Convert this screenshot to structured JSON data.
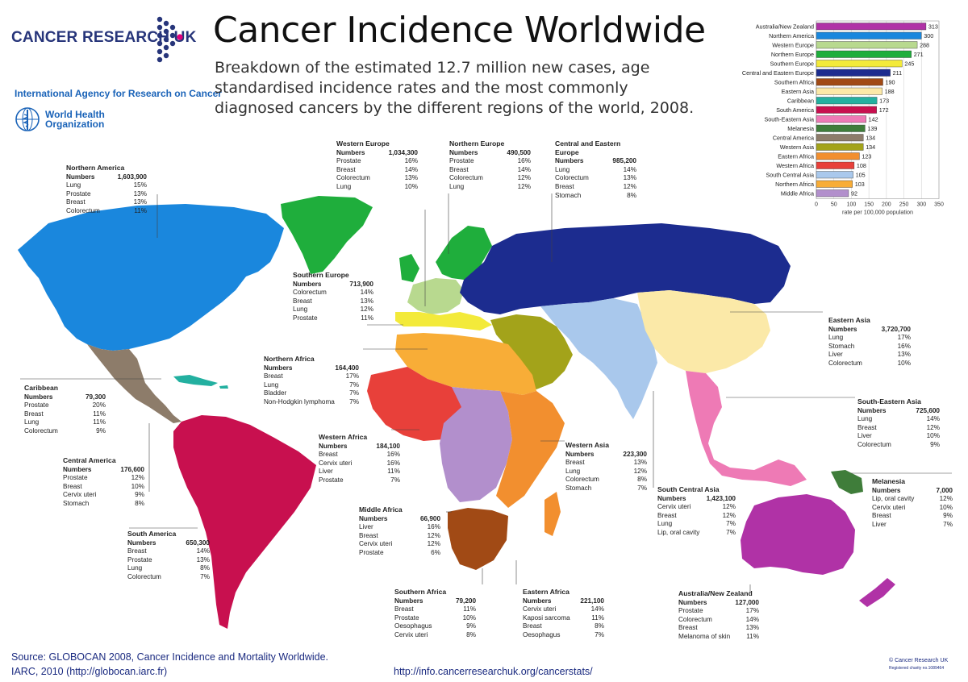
{
  "header": {
    "logo_text": "CANCER RESEARCH UK",
    "iarc_text": "International Agency for Research on Cancer",
    "who_line1": "World Health",
    "who_line2": "Organization",
    "title": "Cancer Incidence Worldwide",
    "subtitle": "Breakdown of the estimated 12.7 million new cases, age standardised incidence rates and the most commonly diagnosed cancers by the different regions of the world, 2008."
  },
  "labels": {
    "numbers": "Numbers"
  },
  "regions": [
    {
      "name": "Northern America",
      "numbers": "1,603,900",
      "cancers": [
        [
          "Lung",
          "15%"
        ],
        [
          "Prostate",
          "13%"
        ],
        [
          "Breast",
          "13%"
        ],
        [
          "Colorectum",
          "11%"
        ]
      ],
      "color": "#1a87dd"
    },
    {
      "name": "Western Europe",
      "numbers": "1,034,300",
      "cancers": [
        [
          "Prostate",
          "16%"
        ],
        [
          "Breast",
          "14%"
        ],
        [
          "Colorectum",
          "13%"
        ],
        [
          "Lung",
          "10%"
        ]
      ],
      "color": "#b8d98f"
    },
    {
      "name": "Northern Europe",
      "numbers": "490,500",
      "cancers": [
        [
          "Prostate",
          "16%"
        ],
        [
          "Breast",
          "14%"
        ],
        [
          "Colorectum",
          "12%"
        ],
        [
          "Lung",
          "12%"
        ]
      ],
      "color": "#1fae3c"
    },
    {
      "name": "Central and Eastern Europe",
      "numbers": "985,200",
      "cancers": [
        [
          "Lung",
          "14%"
        ],
        [
          "Colorectum",
          "13%"
        ],
        [
          "Breast",
          "12%"
        ],
        [
          "Stomach",
          "8%"
        ]
      ],
      "color": "#1c2c8f"
    },
    {
      "name": "Southern Europe",
      "numbers": "713,900",
      "cancers": [
        [
          "Colorectum",
          "14%"
        ],
        [
          "Breast",
          "13%"
        ],
        [
          "Lung",
          "12%"
        ],
        [
          "Prostate",
          "11%"
        ]
      ],
      "color": "#f3ea3a"
    },
    {
      "name": "Eastern Asia",
      "numbers": "3,720,700",
      "cancers": [
        [
          "Lung",
          "17%"
        ],
        [
          "Stomach",
          "16%"
        ],
        [
          "Liver",
          "13%"
        ],
        [
          "Colorectum",
          "10%"
        ]
      ],
      "color": "#fbe9a8"
    },
    {
      "name": "Caribbean",
      "numbers": "79,300",
      "cancers": [
        [
          "Prostate",
          "20%"
        ],
        [
          "Breast",
          "11%"
        ],
        [
          "Lung",
          "11%"
        ],
        [
          "Colorectum",
          "9%"
        ]
      ],
      "color": "#23b0a0"
    },
    {
      "name": "Northern Africa",
      "numbers": "164,400",
      "cancers": [
        [
          "Breast",
          "17%"
        ],
        [
          "Lung",
          "7%"
        ],
        [
          "Bladder",
          "7%"
        ],
        [
          "Non-Hodgkin lymphoma",
          "7%"
        ]
      ],
      "color": "#f8ad37"
    },
    {
      "name": "South-Eastern Asia",
      "numbers": "725,600",
      "cancers": [
        [
          "Lung",
          "14%"
        ],
        [
          "Breast",
          "12%"
        ],
        [
          "Liver",
          "10%"
        ],
        [
          "Colorectum",
          "9%"
        ]
      ],
      "color": "#ee7ab5"
    },
    {
      "name": "Western Africa",
      "numbers": "184,100",
      "cancers": [
        [
          "Breast",
          "16%"
        ],
        [
          "Cervix uteri",
          "16%"
        ],
        [
          "Liver",
          "11%"
        ],
        [
          "Prostate",
          "7%"
        ]
      ],
      "color": "#e8403a"
    },
    {
      "name": "Central America",
      "numbers": "176,600",
      "cancers": [
        [
          "Prostate",
          "12%"
        ],
        [
          "Breast",
          "10%"
        ],
        [
          "Cervix uteri",
          "9%"
        ],
        [
          "Stomach",
          "8%"
        ]
      ],
      "color": "#8d7c6a"
    },
    {
      "name": "Western Asia",
      "numbers": "223,300",
      "cancers": [
        [
          "Breast",
          "13%"
        ],
        [
          "Lung",
          "12%"
        ],
        [
          "Colorectum",
          "8%"
        ],
        [
          "Stomach",
          "7%"
        ]
      ],
      "color": "#a3a31a"
    },
    {
      "name": "Melanesia",
      "numbers": "7,000",
      "cancers": [
        [
          "Lip, oral cavity",
          "12%"
        ],
        [
          "Cervix uteri",
          "10%"
        ],
        [
          "Breast",
          "9%"
        ],
        [
          "Liver",
          "7%"
        ]
      ],
      "color": "#3f7d3a"
    },
    {
      "name": "South Central Asia",
      "numbers": "1,423,100",
      "cancers": [
        [
          "Cervix uteri",
          "12%"
        ],
        [
          "Breast",
          "12%"
        ],
        [
          "Lung",
          "7%"
        ],
        [
          "Lip, oral cavity",
          "7%"
        ]
      ],
      "color": "#a9c8ec"
    },
    {
      "name": "Middle Africa",
      "numbers": "66,900",
      "cancers": [
        [
          "Liver",
          "16%"
        ],
        [
          "Breast",
          "12%"
        ],
        [
          "Cervix uteri",
          "12%"
        ],
        [
          "Prostate",
          "6%"
        ]
      ],
      "color": "#b28fcc"
    },
    {
      "name": "South America",
      "numbers": "650,300",
      "cancers": [
        [
          "Breast",
          "14%"
        ],
        [
          "Prostate",
          "13%"
        ],
        [
          "Lung",
          "8%"
        ],
        [
          "Colorectum",
          "7%"
        ]
      ],
      "color": "#c8104f"
    },
    {
      "name": "Southern Africa",
      "numbers": "79,200",
      "cancers": [
        [
          "Breast",
          "11%"
        ],
        [
          "Prostate",
          "10%"
        ],
        [
          "Oesophagus",
          "9%"
        ],
        [
          "Cervix uteri",
          "8%"
        ]
      ],
      "color": "#a14a15"
    },
    {
      "name": "Eastern Africa",
      "numbers": "221,100",
      "cancers": [
        [
          "Cervix uteri",
          "14%"
        ],
        [
          "Kaposi sarcoma",
          "11%"
        ],
        [
          "Breast",
          "8%"
        ],
        [
          "Oesophagus",
          "7%"
        ]
      ],
      "color": "#f28f2f"
    },
    {
      "name": "Australia/New Zealand",
      "numbers": "127,000",
      "cancers": [
        [
          "Prostate",
          "17%"
        ],
        [
          "Colorectum",
          "14%"
        ],
        [
          "Breast",
          "13%"
        ],
        [
          "Melanoma of skin",
          "11%"
        ]
      ],
      "color": "#b032a6"
    }
  ],
  "chart_data": {
    "type": "bar",
    "orientation": "horizontal",
    "categories": [
      "Australia/New Zealand",
      "Northern America",
      "Western Europe",
      "Northern Europe",
      "Southern Europe",
      "Central and Eastern Europe",
      "Southern Africa",
      "Eastern Asia",
      "Caribbean",
      "South America",
      "South-Eastern Asia",
      "Melanesia",
      "Central America",
      "Western Asia",
      "Eastern Africa",
      "Western Africa",
      "South Central Asia",
      "Northern Africa",
      "Middle Africa"
    ],
    "values": [
      313,
      300,
      288,
      271,
      245,
      211,
      190,
      188,
      173,
      172,
      142,
      139,
      134,
      134,
      123,
      108,
      105,
      103,
      92
    ],
    "colors": [
      "#b032a6",
      "#1a87dd",
      "#b8d98f",
      "#1fae3c",
      "#f3ea3a",
      "#1c2c8f",
      "#a14a15",
      "#fbe9a8",
      "#23b0a0",
      "#c8104f",
      "#ee7ab5",
      "#3f7d3a",
      "#8d7c6a",
      "#a3a31a",
      "#f28f2f",
      "#e8403a",
      "#a9c8ec",
      "#f8ad37",
      "#b28fcc"
    ],
    "ticks": [
      0,
      50,
      100,
      150,
      200,
      250,
      300,
      350
    ],
    "xlim": [
      0,
      350
    ],
    "xlabel": "rate per 100,000 population",
    "grid": true
  },
  "footer": {
    "source_line1": "Source: GLOBOCAN 2008, Cancer Incidence and Mortality Worldwide.",
    "source_line2": "IARC, 2010 (http://globocan.iarc.fr)",
    "url": "http://info.cancerresearchuk.org/cancerstats/",
    "copyright": "© Cancer Research UK",
    "charity": "Registered charity no.1089464"
  }
}
